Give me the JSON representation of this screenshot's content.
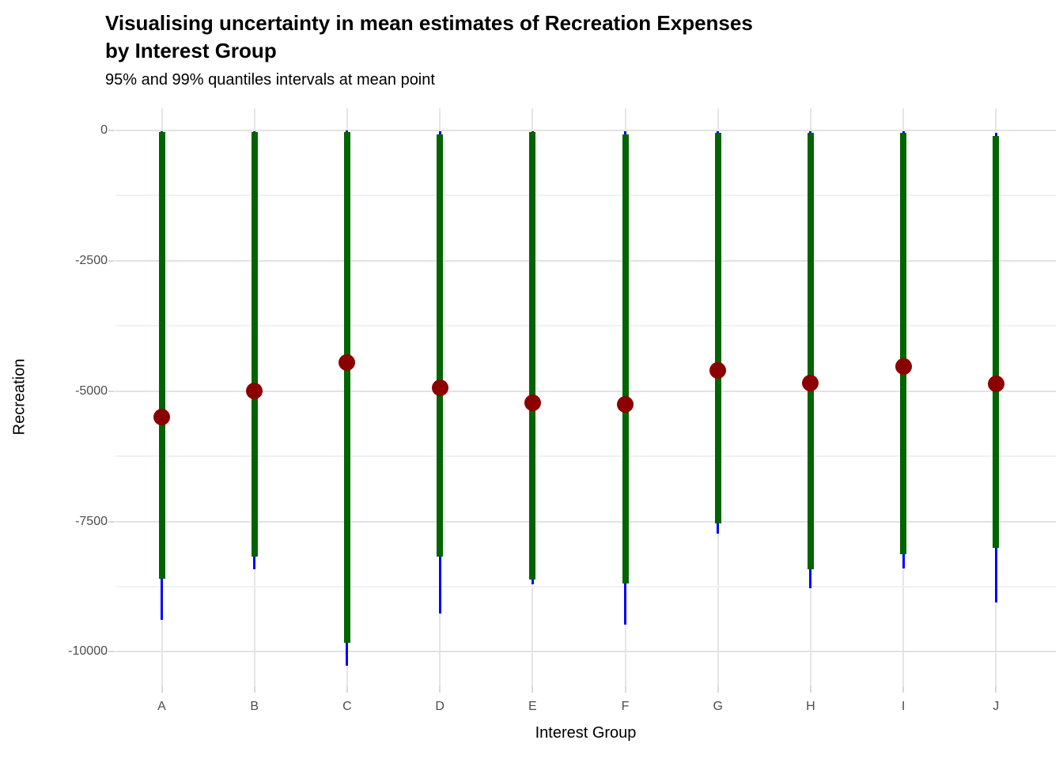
{
  "header": {
    "title_line1": "Visualising uncertainty in mean estimates of Recreation Expenses",
    "title_line2": "by Interest Group",
    "subtitle": "95% and 99% quantiles intervals at mean point"
  },
  "chart_data": {
    "type": "pointrange",
    "title": "Visualising uncertainty in mean estimates of Recreation Expenses by Interest Group",
    "subtitle": "95% and 99% quantiles intervals at mean point",
    "xlabel": "Interest Group",
    "ylabel": "Recreation",
    "categories": [
      "A",
      "B",
      "C",
      "D",
      "E",
      "F",
      "G",
      "H",
      "I",
      "J"
    ],
    "groups": [
      {
        "group": "A",
        "mean": -5490,
        "q95_upper": -30,
        "q95_lower": -8600,
        "q99_upper": -10,
        "q99_lower": -9390
      },
      {
        "group": "B",
        "mean": -5000,
        "q95_upper": -30,
        "q95_lower": -8170,
        "q99_upper": -10,
        "q99_lower": -8410
      },
      {
        "group": "C",
        "mean": -4450,
        "q95_upper": -25,
        "q95_lower": -9820,
        "q99_upper": -5,
        "q99_lower": -10260
      },
      {
        "group": "D",
        "mean": -4940,
        "q95_upper": -75,
        "q95_lower": -8180,
        "q99_upper": -15,
        "q99_lower": -9270
      },
      {
        "group": "E",
        "mean": -5230,
        "q95_upper": -30,
        "q95_lower": -8610,
        "q99_upper": -10,
        "q99_lower": -8700
      },
      {
        "group": "F",
        "mean": -5250,
        "q95_upper": -70,
        "q95_lower": -8690,
        "q99_upper": -15,
        "q99_lower": -9470
      },
      {
        "group": "G",
        "mean": -4610,
        "q95_upper": -45,
        "q95_lower": -7530,
        "q99_upper": -10,
        "q99_lower": -7730
      },
      {
        "group": "H",
        "mean": -4840,
        "q95_upper": -40,
        "q95_lower": -8410,
        "q99_upper": -10,
        "q99_lower": -8780
      },
      {
        "group": "I",
        "mean": -4520,
        "q95_upper": -40,
        "q95_lower": -8130,
        "q99_upper": -10,
        "q99_lower": -8400
      },
      {
        "group": "J",
        "mean": -4860,
        "q95_upper": -100,
        "q95_lower": -8010,
        "q99_upper": -45,
        "q99_lower": -9060
      }
    ],
    "yticks": [
      0,
      -2500,
      -5000,
      -7500,
      -10000
    ],
    "ytick_labels": [
      "0",
      "-2500",
      "-5000",
      "-7500",
      "-10000"
    ],
    "minor_yticks": [
      -1250,
      -3750,
      -6250,
      -8750
    ],
    "ylim": [
      -10660,
      424
    ],
    "grid": true,
    "legend": "none",
    "colors": {
      "interval_95": "#006400",
      "interval_99": "#0000ff",
      "mean_point": "#8b0000",
      "grid_major": "#e2e2e2",
      "grid_minor": "#f1f1f1",
      "tick_label": "#4d4d4d"
    }
  }
}
